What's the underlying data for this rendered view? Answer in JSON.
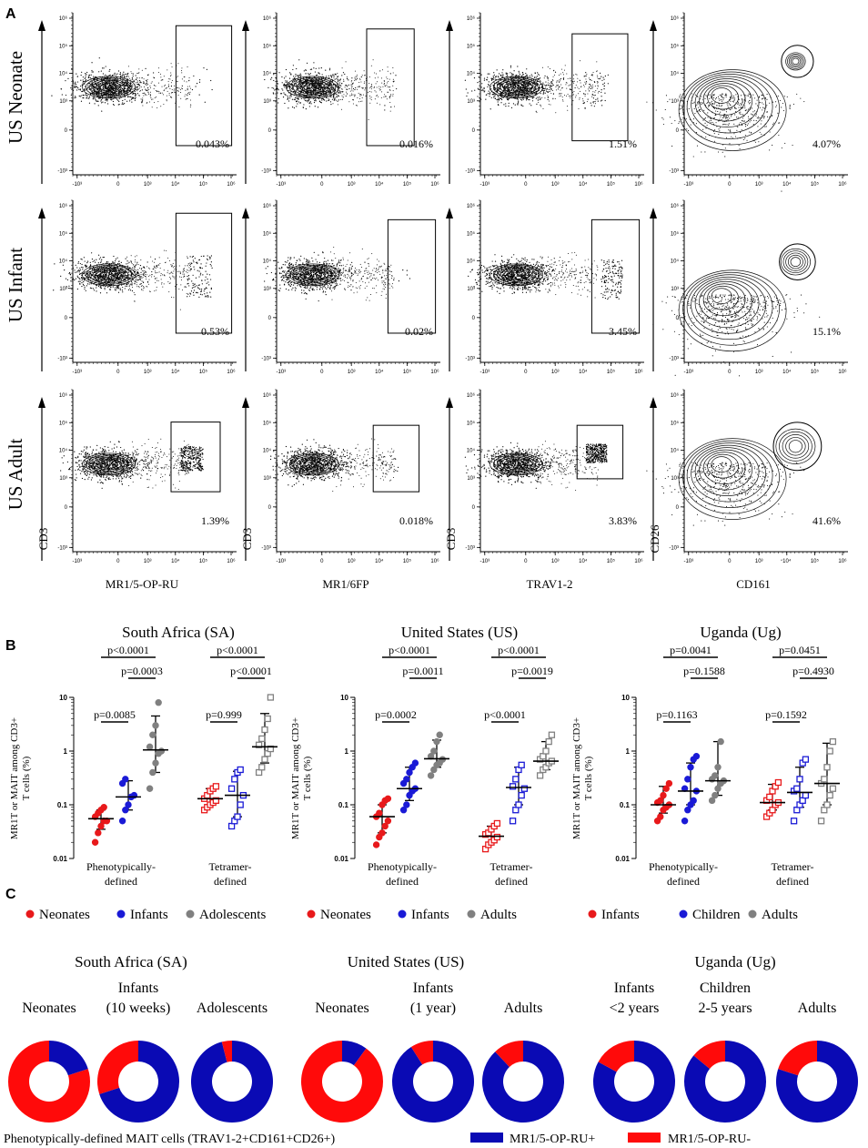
{
  "panels": {
    "a": "A",
    "b": "B",
    "c": "C"
  },
  "chart_data": [
    {
      "type": "flow_cytometry_grid",
      "row_labels": [
        "US Neonate",
        "US Infant",
        "US Adult"
      ],
      "x_labels": [
        "MR1/5-OP-RU",
        "MR1/6FP",
        "TRAV1-2",
        "CD161"
      ],
      "y_labels": [
        "CD3",
        "CD3",
        "CD3",
        "CD26"
      ],
      "percentages": [
        [
          "0.043%",
          "0.016%",
          "1.51%",
          "4.07%"
        ],
        [
          "0.53%",
          "0.02%",
          "3.45%",
          "15.1%"
        ],
        [
          "1.39%",
          "0.018%",
          "3.83%",
          "41.6%"
        ]
      ],
      "tick_labels": {
        "x": [
          "-10³",
          "0",
          "10³",
          "10⁴",
          "10⁵",
          "10⁶"
        ],
        "y": [
          "-10³",
          "0",
          "10³",
          "10⁴",
          "10⁵",
          "10⁶"
        ]
      }
    },
    {
      "type": "scatter",
      "title": "South Africa (SA)",
      "ylabel": "MR1T or MAIT among CD3+ T cells (%)",
      "ylabel_lines": [
        "MR1T or MAIT among CD3+",
        "T cells (%)"
      ],
      "yscale": "log",
      "ylim": [
        0.01,
        10
      ],
      "yticks": [
        "10",
        "1",
        "0.1",
        "0.01"
      ],
      "categories": [
        "Phenotypically-defined",
        "Tetramer-defined"
      ],
      "category_lines": [
        [
          "Phenotypically-",
          "defined"
        ],
        [
          "Tetramer-",
          "defined"
        ]
      ],
      "legend": [
        "Neonates",
        "Infants",
        "Adolescents"
      ],
      "series": [
        {
          "name": "Neonates",
          "color": "#e8191b",
          "groups": [
            {
              "category": "Phenotypically-defined",
              "values": [
                0.02,
                0.03,
                0.04,
                0.05,
                0.05,
                0.06,
                0.07,
                0.08,
                0.09
              ],
              "median": 0.055,
              "q1": 0.035,
              "q3": 0.08
            },
            {
              "category": "Tetramer-defined",
              "values": [
                0.08,
                0.09,
                0.1,
                0.11,
                0.12,
                0.13,
                0.15,
                0.18,
                0.2,
                0.22
              ],
              "median": 0.13,
              "q1": 0.1,
              "q3": 0.2
            }
          ]
        },
        {
          "name": "Infants",
          "color": "#1a1ad6",
          "groups": [
            {
              "category": "Phenotypically-defined",
              "values": [
                0.05,
                0.08,
                0.1,
                0.14,
                0.15,
                0.25,
                0.3
              ],
              "median": 0.14,
              "q1": 0.08,
              "q3": 0.28
            },
            {
              "category": "Tetramer-defined",
              "values": [
                0.04,
                0.05,
                0.06,
                0.1,
                0.15,
                0.2,
                0.3,
                0.4,
                0.45
              ],
              "median": 0.15,
              "q1": 0.06,
              "q3": 0.42
            }
          ]
        },
        {
          "name": "Adolescents",
          "color": "#808080",
          "groups": [
            {
              "category": "Phenotypically-defined",
              "values": [
                0.2,
                0.4,
                0.6,
                0.9,
                1.0,
                1.2,
                2.0,
                3.0,
                8.0
              ],
              "median": 1.05,
              "q1": 0.4,
              "q3": 4.5
            },
            {
              "category": "Tetramer-defined",
              "values": [
                0.4,
                0.5,
                0.7,
                0.9,
                1.1,
                1.3,
                1.7,
                2.5,
                4.0,
                10.0
              ],
              "median": 1.2,
              "q1": 0.6,
              "q3": 5.0
            }
          ]
        }
      ],
      "comparisons": [
        {
          "category": "Phenotypically-defined",
          "groups": [
            "Neonates",
            "Infants"
          ],
          "label": "p=0.0085",
          "level": 0
        },
        {
          "category": "Phenotypically-defined",
          "groups": [
            "Infants",
            "Adolescents"
          ],
          "label": "p=0.0003",
          "level": 1
        },
        {
          "category": "Phenotypically-defined",
          "groups": [
            "Neonates",
            "Adolescents"
          ],
          "label": "p<0.0001",
          "level": 2
        },
        {
          "category": "Tetramer-defined",
          "groups": [
            "Neonates",
            "Infants"
          ],
          "label": "p=0.999",
          "level": 0
        },
        {
          "category": "Tetramer-defined",
          "groups": [
            "Infants",
            "Adolescents"
          ],
          "label": "p<0.0001",
          "level": 1
        },
        {
          "category": "Tetramer-defined",
          "groups": [
            "Neonates",
            "Adolescents"
          ],
          "label": "p<0.0001",
          "level": 2
        }
      ]
    },
    {
      "type": "scatter",
      "title": "United States (US)",
      "ylabel": "MR1T or MAIT among CD3+ T cells (%)",
      "ylabel_lines": [
        "MR1T or MAIT among CD3+",
        "T cells (%)"
      ],
      "yscale": "log",
      "ylim": [
        0.01,
        10
      ],
      "yticks": [
        "10",
        "1",
        "0.1",
        "0.01"
      ],
      "categories": [
        "Phenotypically-defined",
        "Tetramer-defined"
      ],
      "category_lines": [
        [
          "Phenotypically-",
          "defined"
        ],
        [
          "Tetramer-",
          "defined"
        ]
      ],
      "legend": [
        "Neonates",
        "Infants",
        "Adults"
      ],
      "series": [
        {
          "name": "Neonates",
          "color": "#e8191b",
          "groups": [
            {
              "category": "Phenotypically-defined",
              "values": [
                0.018,
                0.025,
                0.03,
                0.04,
                0.05,
                0.06,
                0.07,
                0.1,
                0.12,
                0.13
              ],
              "median": 0.06,
              "q1": 0.03,
              "q3": 0.1
            },
            {
              "category": "Tetramer-defined",
              "values": [
                0.015,
                0.018,
                0.02,
                0.022,
                0.025,
                0.028,
                0.03,
                0.035,
                0.04,
                0.045
              ],
              "median": 0.026,
              "q1": 0.02,
              "q3": 0.04
            }
          ]
        },
        {
          "name": "Infants",
          "color": "#1a1ad6",
          "groups": [
            {
              "category": "Phenotypically-defined",
              "values": [
                0.08,
                0.1,
                0.15,
                0.18,
                0.2,
                0.25,
                0.3,
                0.4,
                0.5,
                0.6
              ],
              "median": 0.2,
              "q1": 0.12,
              "q3": 0.5
            },
            {
              "category": "Tetramer-defined",
              "values": [
                0.05,
                0.08,
                0.1,
                0.15,
                0.2,
                0.22,
                0.3,
                0.45,
                0.55
              ],
              "median": 0.21,
              "q1": 0.1,
              "q3": 0.5
            }
          ]
        },
        {
          "name": "Adults",
          "color": "#808080",
          "groups": [
            {
              "category": "Phenotypically-defined",
              "values": [
                0.35,
                0.45,
                0.55,
                0.6,
                0.7,
                0.8,
                1.0,
                1.5,
                2.0
              ],
              "median": 0.72,
              "q1": 0.5,
              "q3": 1.6
            },
            {
              "category": "Tetramer-defined",
              "values": [
                0.35,
                0.45,
                0.5,
                0.6,
                0.65,
                0.7,
                0.8,
                1.0,
                1.5,
                2.0
              ],
              "median": 0.65,
              "q1": 0.45,
              "q3": 1.5
            }
          ]
        }
      ],
      "comparisons": [
        {
          "category": "Phenotypically-defined",
          "groups": [
            "Neonates",
            "Infants"
          ],
          "label": "p=0.0002",
          "level": 0
        },
        {
          "category": "Phenotypically-defined",
          "groups": [
            "Infants",
            "Adults"
          ],
          "label": "p=0.0011",
          "level": 1
        },
        {
          "category": "Phenotypically-defined",
          "groups": [
            "Neonates",
            "Adults"
          ],
          "label": "p<0.0001",
          "level": 2
        },
        {
          "category": "Tetramer-defined",
          "groups": [
            "Neonates",
            "Infants"
          ],
          "label": "p<0.0001",
          "level": 0
        },
        {
          "category": "Tetramer-defined",
          "groups": [
            "Infants",
            "Adults"
          ],
          "label": "p=0.0019",
          "level": 1
        },
        {
          "category": "Tetramer-defined",
          "groups": [
            "Neonates",
            "Adults"
          ],
          "label": "p<0.0001",
          "level": 2
        }
      ]
    },
    {
      "type": "scatter",
      "title": "Uganda (Ug)",
      "ylabel": "MR1T or MAIT among CD3+ T cells (%)",
      "ylabel_lines": [
        "MR1T or MAIT among CD3+",
        "T cells (%)"
      ],
      "yscale": "log",
      "ylim": [
        0.01,
        10
      ],
      "yticks": [
        "10",
        "1",
        "0.1",
        "0.01"
      ],
      "categories": [
        "Phenotypically-defined",
        "Tetramer-defined"
      ],
      "category_lines": [
        [
          "Phenotypically-",
          "defined"
        ],
        [
          "Tetramer-",
          "defined"
        ]
      ],
      "legend": [
        "Infants",
        "Children",
        "Adults"
      ],
      "series": [
        {
          "name": "Infants",
          "color": "#e8191b",
          "groups": [
            {
              "category": "Phenotypically-defined",
              "values": [
                0.05,
                0.06,
                0.08,
                0.09,
                0.1,
                0.11,
                0.12,
                0.15,
                0.2,
                0.25
              ],
              "median": 0.1,
              "q1": 0.07,
              "q3": 0.22
            },
            {
              "category": "Tetramer-defined",
              "values": [
                0.06,
                0.07,
                0.08,
                0.1,
                0.11,
                0.12,
                0.14,
                0.18,
                0.22,
                0.26
              ],
              "median": 0.11,
              "q1": 0.08,
              "q3": 0.24
            }
          ]
        },
        {
          "name": "Children",
          "color": "#1a1ad6",
          "groups": [
            {
              "category": "Phenotypically-defined",
              "values": [
                0.05,
                0.08,
                0.1,
                0.12,
                0.18,
                0.2,
                0.3,
                0.5,
                0.7,
                0.8
              ],
              "median": 0.18,
              "q1": 0.1,
              "q3": 0.6
            },
            {
              "category": "Tetramer-defined",
              "values": [
                0.05,
                0.08,
                0.1,
                0.12,
                0.15,
                0.18,
                0.2,
                0.3,
                0.6,
                0.7
              ],
              "median": 0.17,
              "q1": 0.09,
              "q3": 0.5
            }
          ]
        },
        {
          "name": "Adults",
          "color": "#808080",
          "groups": [
            {
              "category": "Phenotypically-defined",
              "values": [
                0.12,
                0.15,
                0.2,
                0.25,
                0.28,
                0.3,
                0.35,
                0.5,
                1.5
              ],
              "median": 0.28,
              "q1": 0.15,
              "q3": 1.5
            },
            {
              "category": "Tetramer-defined",
              "values": [
                0.05,
                0.08,
                0.1,
                0.15,
                0.2,
                0.25,
                0.3,
                0.5,
                1.0,
                1.5
              ],
              "median": 0.25,
              "q1": 0.1,
              "q3": 1.4
            }
          ]
        }
      ],
      "comparisons": [
        {
          "category": "Phenotypically-defined",
          "groups": [
            "Infants",
            "Children"
          ],
          "label": "p=0.1163",
          "level": 0
        },
        {
          "category": "Phenotypically-defined",
          "groups": [
            "Children",
            "Adults"
          ],
          "label": "p=0.1588",
          "level": 1
        },
        {
          "category": "Phenotypically-defined",
          "groups": [
            "Infants",
            "Adults"
          ],
          "label": "p=0.0041",
          "level": 2
        },
        {
          "category": "Tetramer-defined",
          "groups": [
            "Infants",
            "Children"
          ],
          "label": "p=0.1592",
          "level": 0
        },
        {
          "category": "Tetramer-defined",
          "groups": [
            "Children",
            "Adults"
          ],
          "label": "p=0.4930",
          "level": 1
        },
        {
          "category": "Tetramer-defined",
          "groups": [
            "Infants",
            "Adults"
          ],
          "label": "p=0.0451",
          "level": 2
        }
      ]
    },
    {
      "type": "pie",
      "style": "donut",
      "caption": "Phenotypically-defined MAIT cells (TRAV1-2+CD161+CD26+)",
      "legend": [
        {
          "label": "MR1/5-OP-RU+",
          "color": "#0a0ab4"
        },
        {
          "label": "MR1/5-OP-RU-",
          "color": "#ff0a0a"
        }
      ],
      "groups": [
        {
          "title": "South Africa (SA)",
          "donuts": [
            {
              "label_lines": [
                "Neonates"
              ],
              "positive_pct": 20
            },
            {
              "label_lines": [
                "Infants",
                "(10 weeks)"
              ],
              "positive_pct": 70
            },
            {
              "label_lines": [
                "Adolescents"
              ],
              "positive_pct": 96
            }
          ]
        },
        {
          "title": "United States (US)",
          "donuts": [
            {
              "label_lines": [
                "Neonates"
              ],
              "positive_pct": 10
            },
            {
              "label_lines": [
                "Infants",
                "(1 year)"
              ],
              "positive_pct": 91
            },
            {
              "label_lines": [
                "Adults"
              ],
              "positive_pct": 88
            }
          ]
        },
        {
          "title": "Uganda (Ug)",
          "donuts": [
            {
              "label_lines": [
                "Infants",
                "<2 years"
              ],
              "positive_pct": 83
            },
            {
              "label_lines": [
                "Children",
                "2-5 years"
              ],
              "positive_pct": 86
            },
            {
              "label_lines": [
                "Adults"
              ],
              "positive_pct": 80
            }
          ]
        }
      ]
    }
  ]
}
